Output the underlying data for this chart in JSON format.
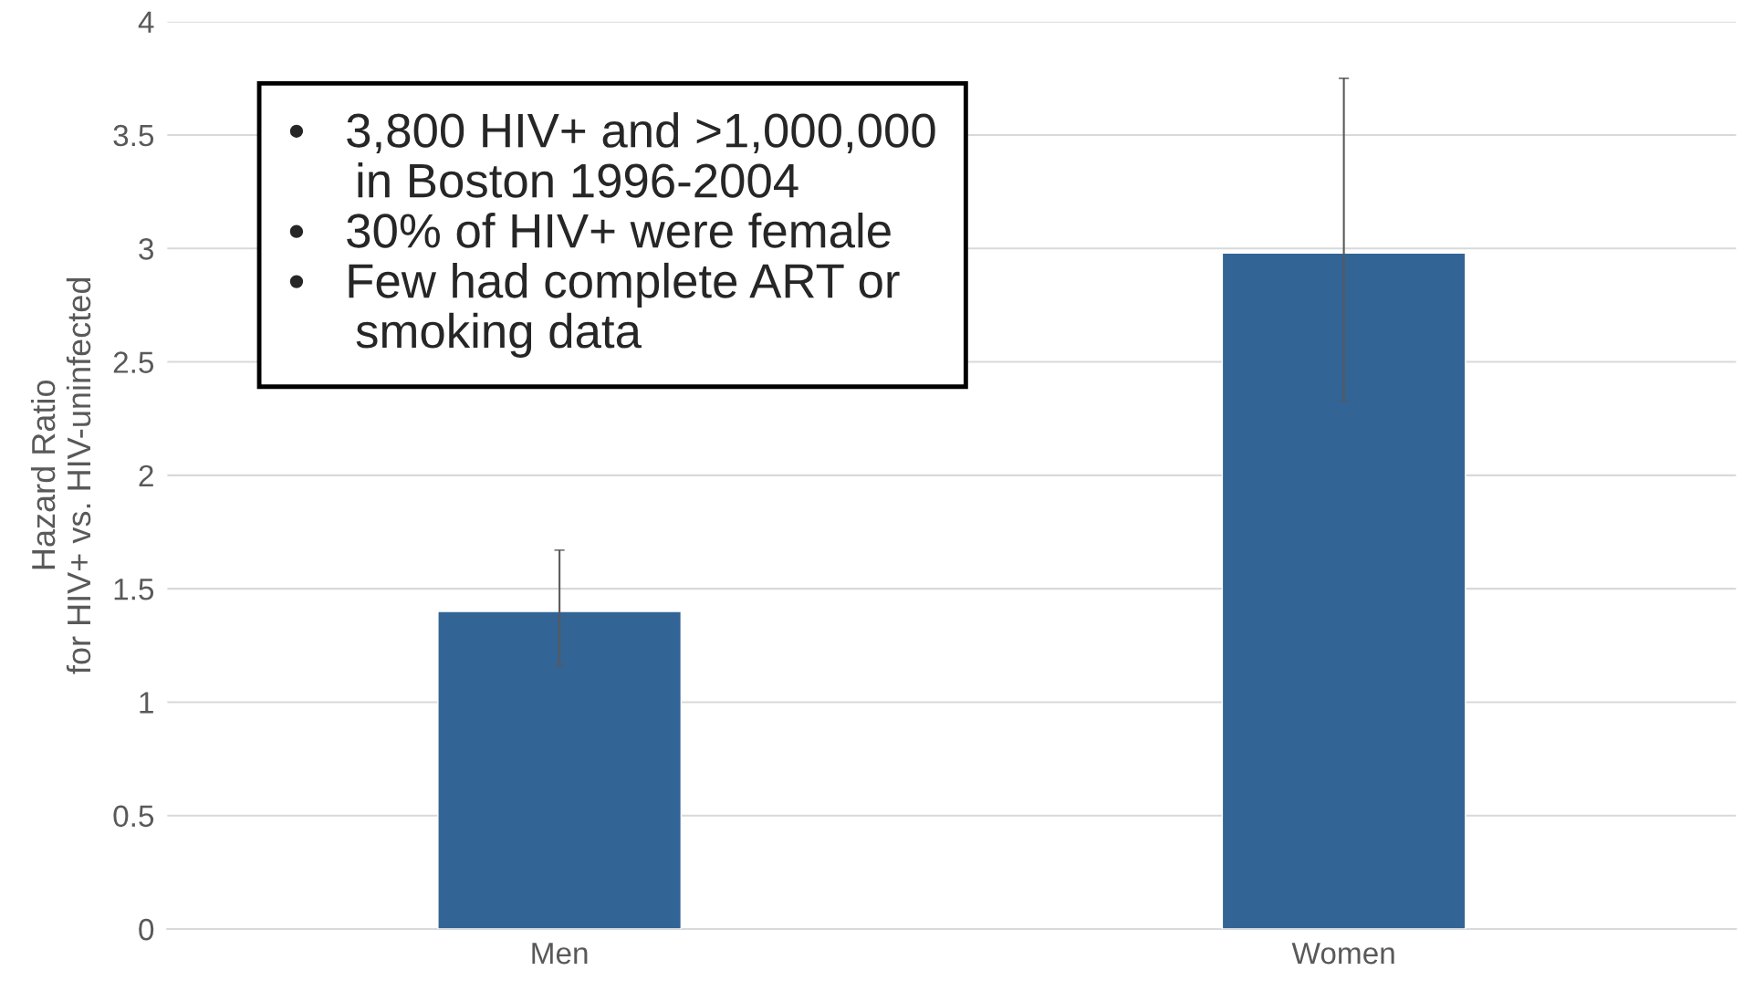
{
  "chart_data": {
    "type": "bar",
    "ylabel": "Hazard Ratio\nfor HIV+ vs. HIV-uninfected",
    "categories": [
      "Men",
      "Women"
    ],
    "values": [
      1.4,
      2.98
    ],
    "errors": [
      [
        1.16,
        1.67
      ],
      [
        2.33,
        3.75
      ]
    ],
    "color": "#326496",
    "ylim": [
      0,
      4
    ],
    "yticks": [
      0,
      0.5,
      1,
      1.5,
      2,
      2.5,
      3,
      3.5,
      4
    ],
    "grid": "y",
    "annotations": [
      "•   3,800 HIV+ and >1,000,000\n     in Boston 1996-2004",
      "•   30% of HIV+ were female",
      "•   Few had complete ART or\n     smoking data"
    ]
  }
}
